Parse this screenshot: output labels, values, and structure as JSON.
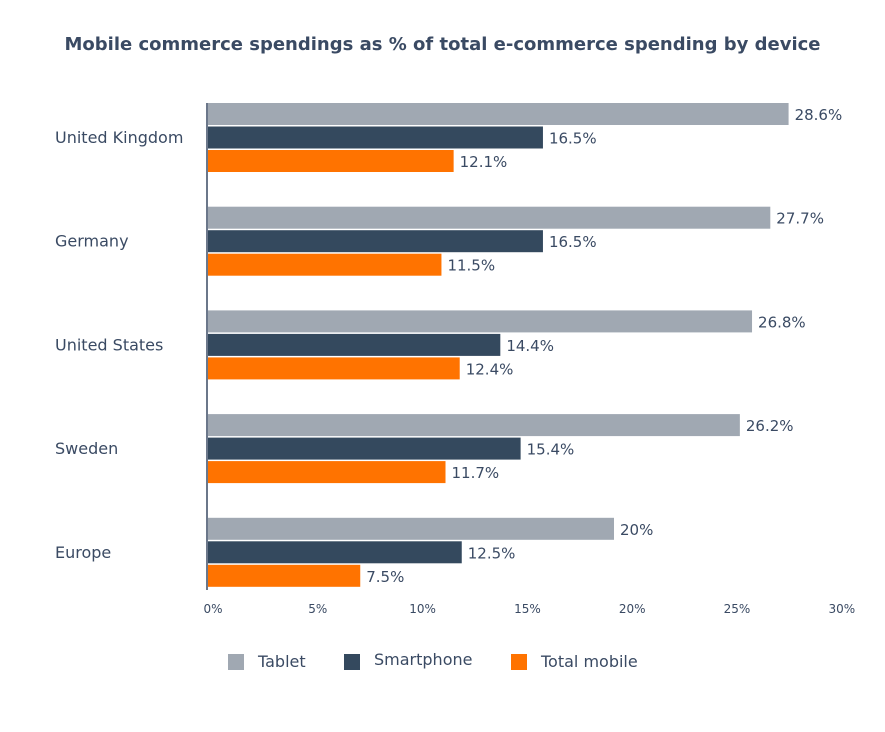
{
  "chart_data": {
    "type": "bar",
    "orientation": "horizontal",
    "title": "Mobile commerce spendings as % of total e-commerce spending by device",
    "categories": [
      "United Kingdom",
      "Germany",
      "United States",
      "Sweden",
      "Europe"
    ],
    "series": [
      {
        "name": "Tablet",
        "color": "#a0a8b2",
        "values": [
          28.6,
          27.7,
          26.8,
          26.2,
          20
        ],
        "labels": [
          "28.6%",
          "27.7%",
          "26.8%",
          "26.2%",
          "20%"
        ]
      },
      {
        "name": "Smartphone",
        "color": "#34495e",
        "values": [
          16.5,
          16.5,
          14.4,
          15.4,
          12.5
        ],
        "labels": [
          "16.5%",
          "16.5%",
          "14.4%",
          "15.4%",
          "12.5%"
        ]
      },
      {
        "name": "Total mobile",
        "color": "#ff7300",
        "values": [
          12.1,
          11.5,
          12.4,
          11.7,
          7.5
        ],
        "labels": [
          "12.1%",
          "11.5%",
          "12.4%",
          "11.7%",
          "7.5%"
        ]
      }
    ],
    "xlim": [
      0,
      30
    ],
    "xticks": [
      "0%",
      "5%",
      "10%",
      "15%",
      "20%",
      "25%",
      "30%"
    ],
    "grid": false,
    "legend": "bottom"
  }
}
